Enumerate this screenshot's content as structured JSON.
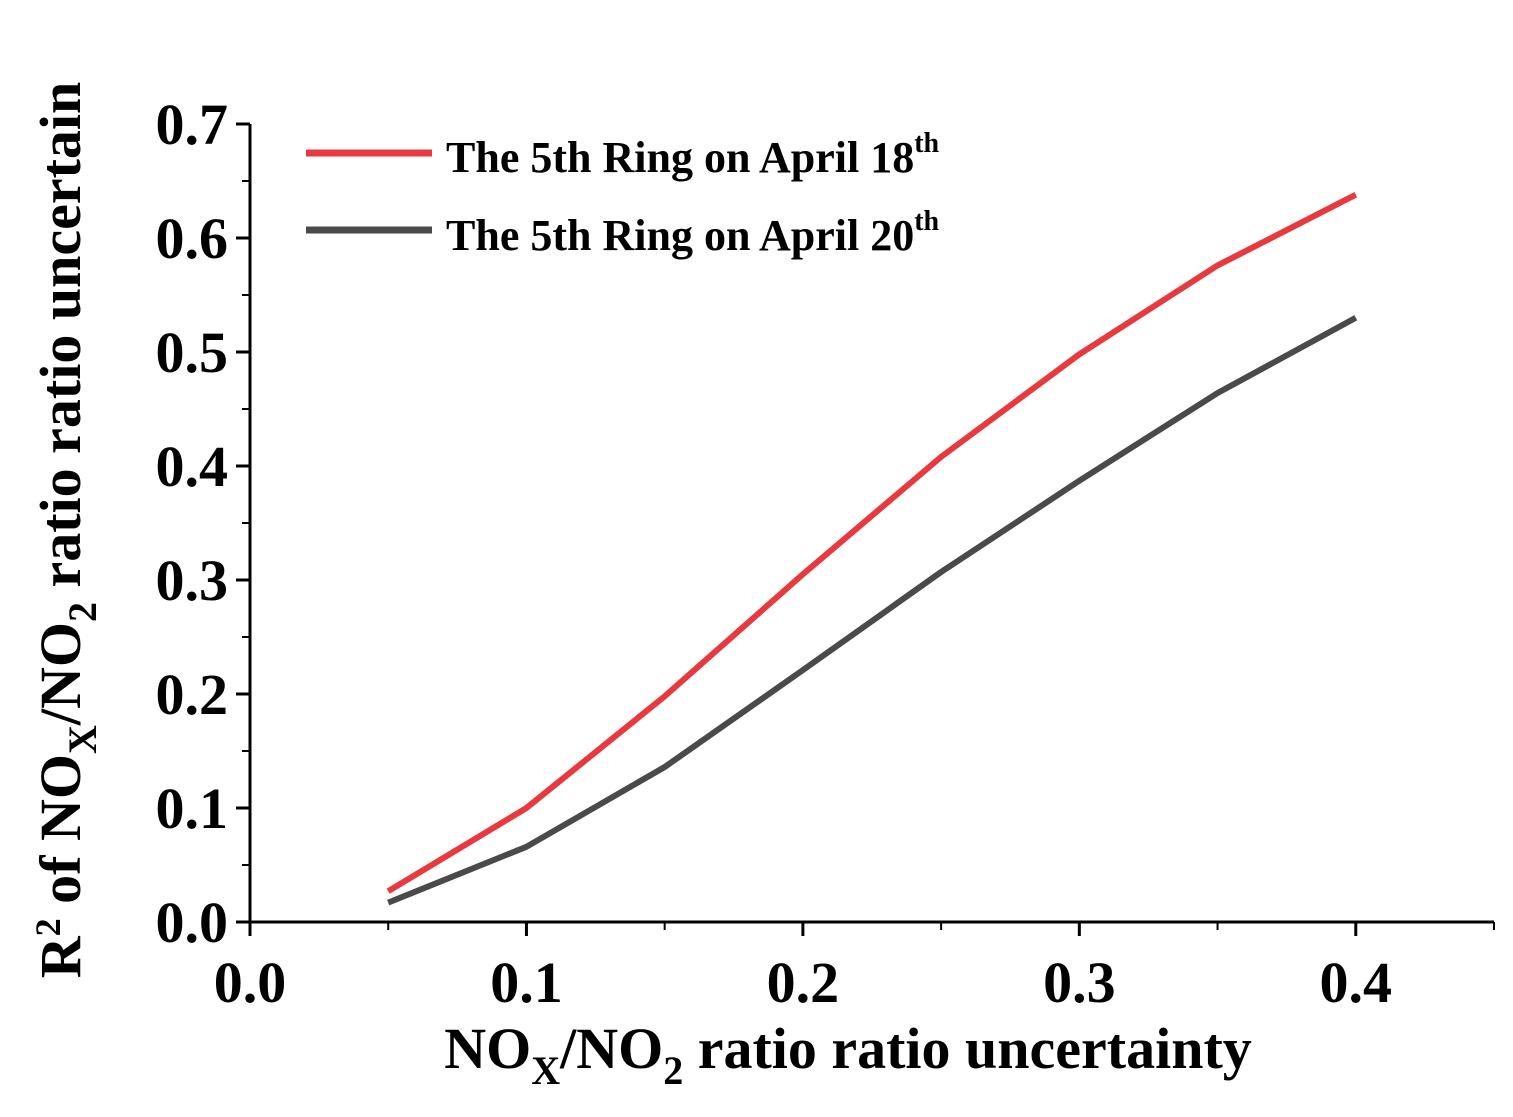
{
  "chart_data": {
    "type": "line",
    "title": "",
    "xlabel": {
      "p1": "NO",
      "sub1": "X",
      "p2": "/NO",
      "sub2": "2",
      "p3": " ratio ratio uncertainty"
    },
    "ylabel": {
      "p1": "R",
      "sup1": "2",
      "p2": " of NO",
      "sub1": "X",
      "p3": "/NO",
      "sub2": "2",
      "p4": " ratio ratio uncertain"
    },
    "xlim": [
      0.0,
      0.45
    ],
    "ylim": [
      0.0,
      0.7
    ],
    "x_ticks": [
      "0.0",
      "0.1",
      "0.2",
      "0.3",
      "0.4"
    ],
    "y_ticks": [
      "0.0",
      "0.1",
      "0.2",
      "0.3",
      "0.4",
      "0.5",
      "0.6",
      "0.7"
    ],
    "grid": false,
    "legend_position": "top-left",
    "series": [
      {
        "name": "The 5th Ring on April 18",
        "name_sup": "th",
        "color": "#e8393f",
        "x": [
          0.05,
          0.1,
          0.15,
          0.2,
          0.25,
          0.3,
          0.35,
          0.4
        ],
        "y": [
          0.027,
          0.1,
          0.198,
          0.305,
          0.408,
          0.498,
          0.576,
          0.638
        ]
      },
      {
        "name": "The 5th Ring on April 20",
        "name_sup": "th",
        "color": "#4a4a4a",
        "x": [
          0.05,
          0.1,
          0.15,
          0.2,
          0.25,
          0.3,
          0.35,
          0.4
        ],
        "y": [
          0.017,
          0.066,
          0.136,
          0.221,
          0.307,
          0.387,
          0.464,
          0.53
        ]
      }
    ]
  }
}
